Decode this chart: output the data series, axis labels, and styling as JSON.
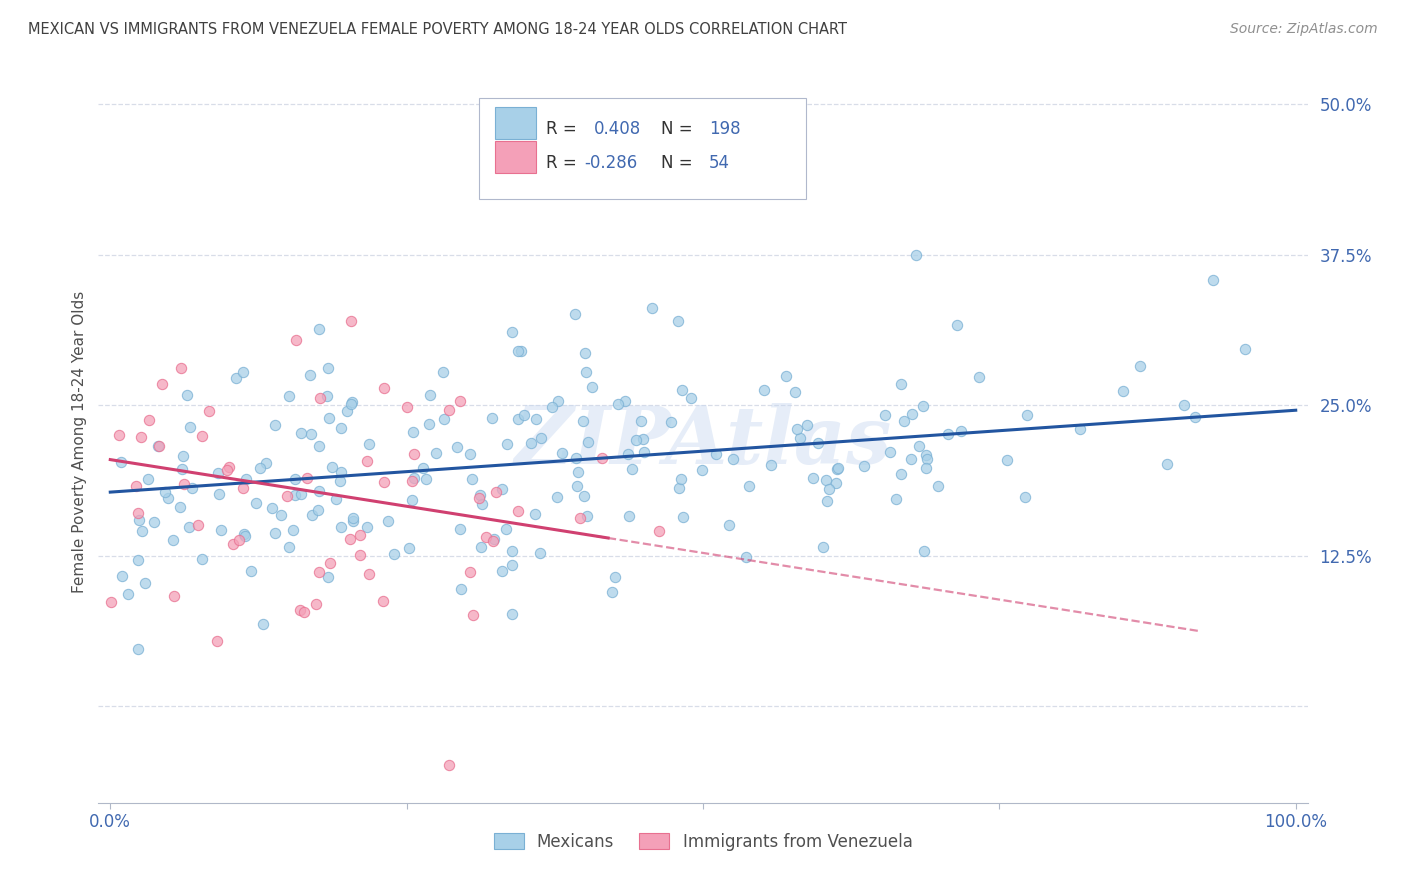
{
  "title": "MEXICAN VS IMMIGRANTS FROM VENEZUELA FEMALE POVERTY AMONG 18-24 YEAR OLDS CORRELATION CHART",
  "source": "Source: ZipAtlas.com",
  "ylabel": "Female Poverty Among 18-24 Year Olds",
  "watermark": "ZIPAtlas",
  "xlim": [
    -0.01,
    1.01
  ],
  "ylim": [
    -0.08,
    0.52
  ],
  "yticks": [
    0.0,
    0.125,
    0.25,
    0.375,
    0.5
  ],
  "ytick_labels": [
    "",
    "12.5%",
    "25.0%",
    "37.5%",
    "50.0%"
  ],
  "xticks": [
    0.0,
    0.25,
    0.5,
    0.75,
    1.0
  ],
  "xtick_labels": [
    "0.0%",
    "",
    "",
    "",
    "100.0%"
  ],
  "mexican_color": "#a8d0e8",
  "venezuela_color": "#f4a0b8",
  "mexican_edge_color": "#7ab0d4",
  "venezuela_edge_color": "#e87090",
  "mexican_line_color": "#2255a0",
  "venezuela_line_color": "#d04070",
  "tick_label_color": "#4169b0",
  "title_color": "#404040",
  "source_color": "#909090",
  "background_color": "#ffffff",
  "grid_color": "#d8dde8",
  "mexican_slope": 0.068,
  "mexican_intercept": 0.178,
  "venezuela_slope": -0.155,
  "venezuela_intercept": 0.205,
  "figsize": [
    14.06,
    8.92
  ],
  "dpi": 100
}
